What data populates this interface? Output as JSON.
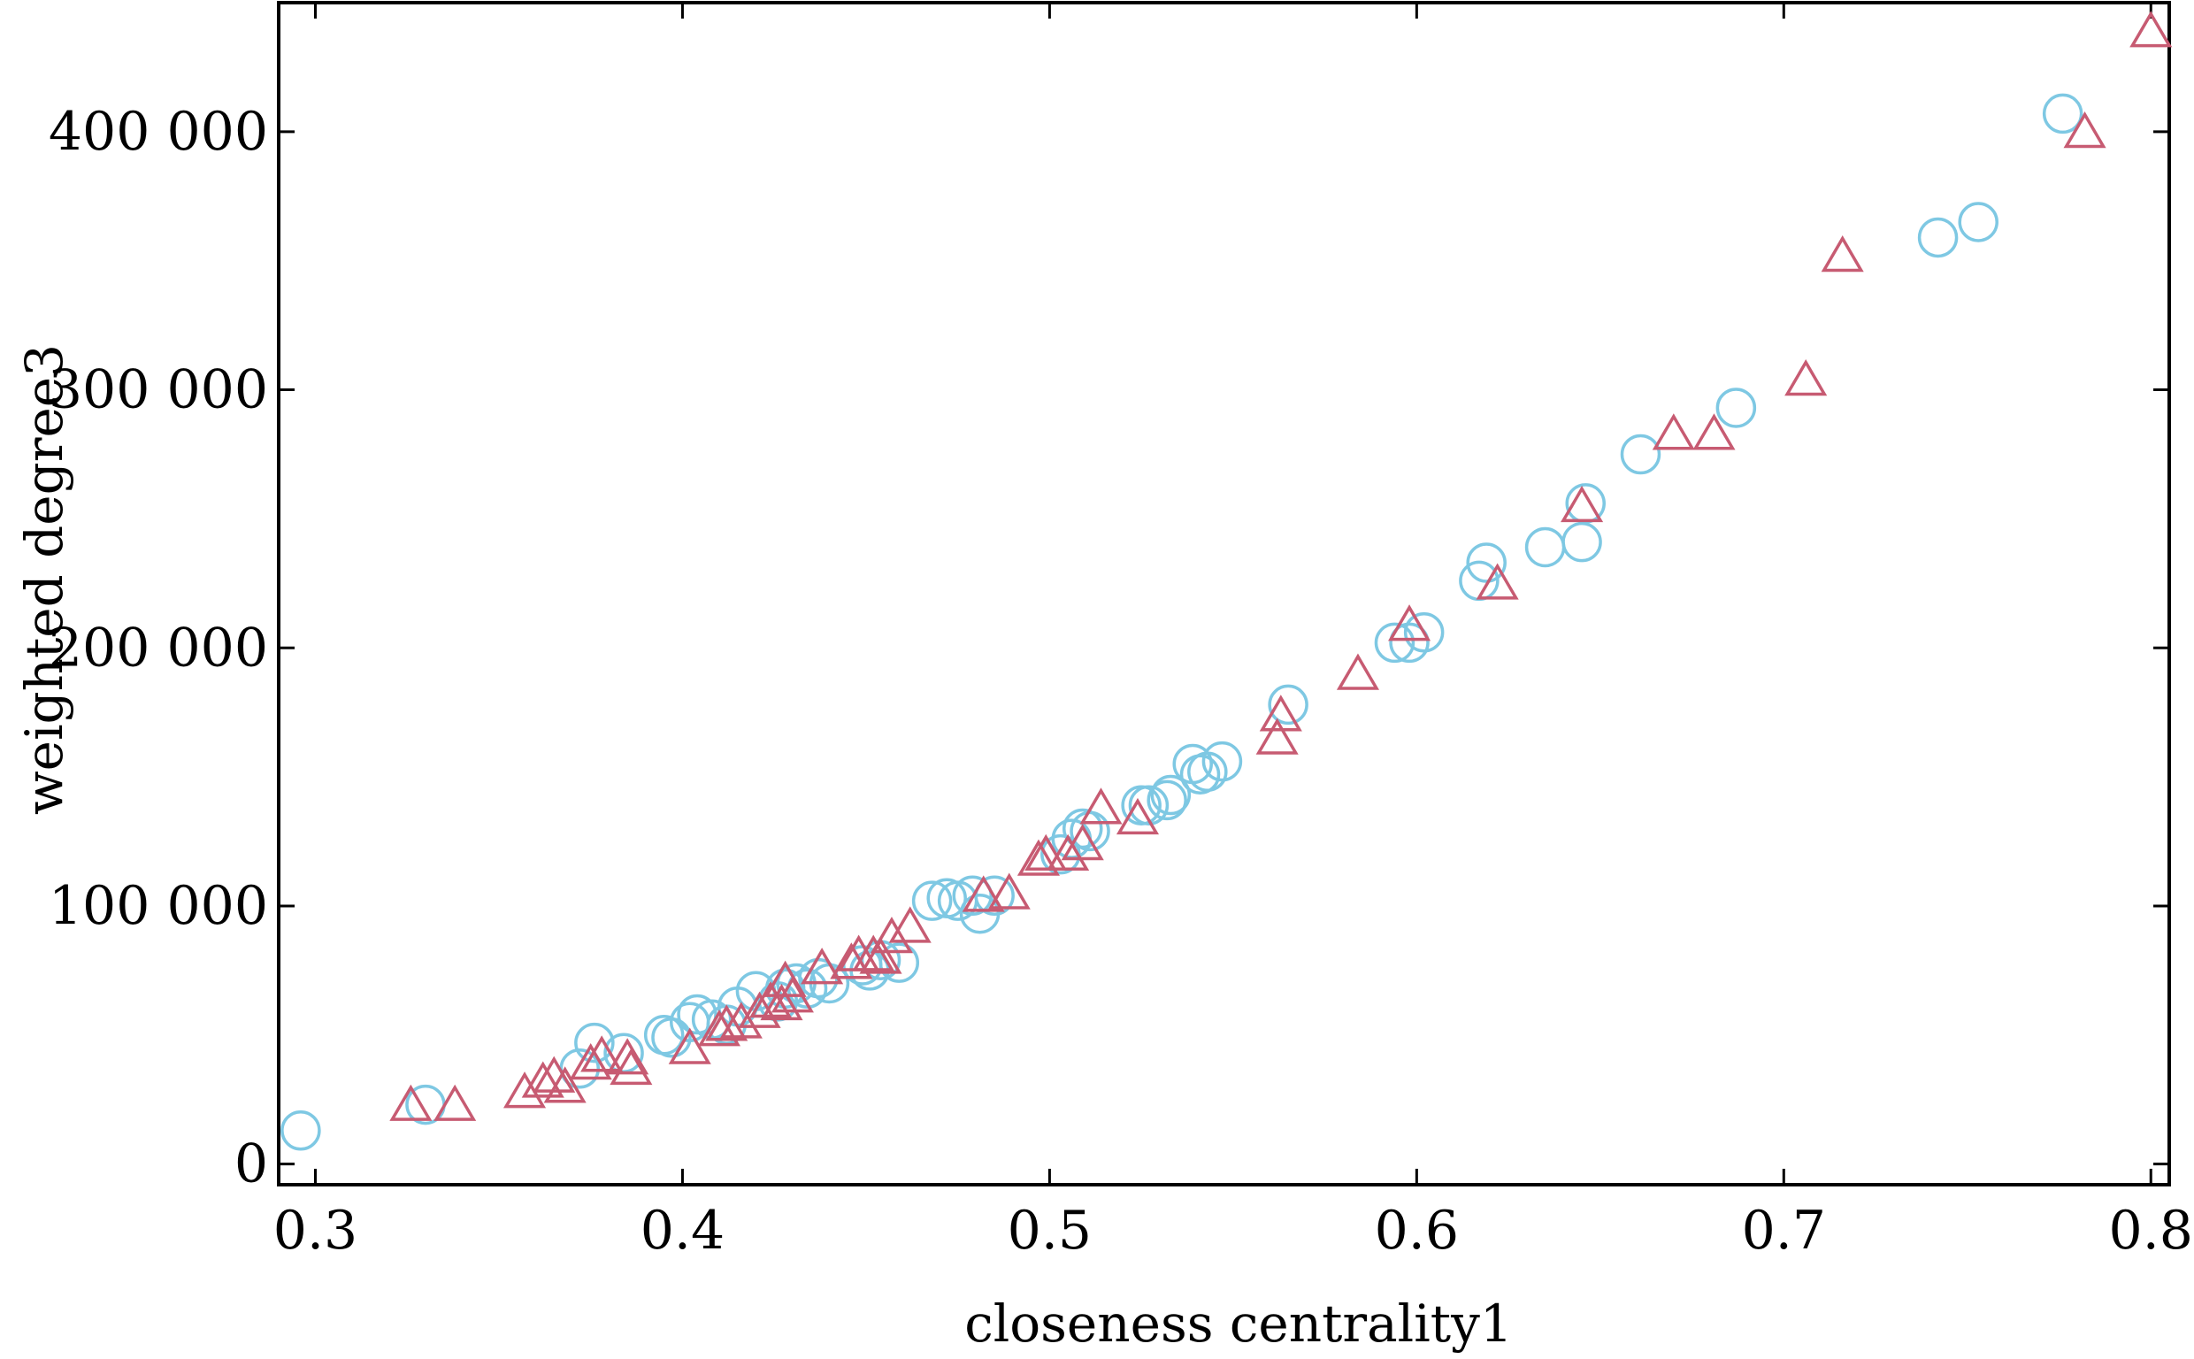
{
  "chart_data": {
    "type": "scatter",
    "xlabel": "closeness centrality1",
    "ylabel": "weighted degree3",
    "xlim": [
      0.29,
      0.805
    ],
    "ylim": [
      -8000,
      450000
    ],
    "xticks": [
      0.3,
      0.4,
      0.5,
      0.6,
      0.7,
      0.8
    ],
    "xtick_labels": [
      "0.3",
      "0.4",
      "0.5",
      "0.6",
      "0.7",
      "0.8"
    ],
    "yticks": [
      0,
      100000,
      200000,
      300000,
      400000
    ],
    "ytick_labels": [
      "0",
      "100 000",
      "200 000",
      "300 000",
      "400 000"
    ],
    "grid": false,
    "series": [
      {
        "marker": "circle",
        "color": "#7ec8e3",
        "points": [
          [
            0.296,
            13000
          ],
          [
            0.33,
            23000
          ],
          [
            0.372,
            37000
          ],
          [
            0.376,
            47000
          ],
          [
            0.384,
            43000
          ],
          [
            0.395,
            50000
          ],
          [
            0.397,
            49000
          ],
          [
            0.402,
            55000
          ],
          [
            0.404,
            58000
          ],
          [
            0.408,
            56000
          ],
          [
            0.412,
            54000
          ],
          [
            0.415,
            61000
          ],
          [
            0.42,
            67000
          ],
          [
            0.426,
            63000
          ],
          [
            0.428,
            68000
          ],
          [
            0.431,
            70000
          ],
          [
            0.434,
            68000
          ],
          [
            0.437,
            72000
          ],
          [
            0.44,
            70000
          ],
          [
            0.449,
            77000
          ],
          [
            0.451,
            75000
          ],
          [
            0.454,
            79000
          ],
          [
            0.459,
            78000
          ],
          [
            0.468,
            102000
          ],
          [
            0.472,
            103000
          ],
          [
            0.475,
            102000
          ],
          [
            0.479,
            104000
          ],
          [
            0.481,
            97000
          ],
          [
            0.485,
            104000
          ],
          [
            0.503,
            120000
          ],
          [
            0.506,
            126000
          ],
          [
            0.509,
            130000
          ],
          [
            0.511,
            129000
          ],
          [
            0.525,
            139000
          ],
          [
            0.527,
            139000
          ],
          [
            0.532,
            141000
          ],
          [
            0.533,
            143000
          ],
          [
            0.539,
            155000
          ],
          [
            0.541,
            151000
          ],
          [
            0.543,
            152000
          ],
          [
            0.547,
            156000
          ],
          [
            0.565,
            178000
          ],
          [
            0.594,
            202000
          ],
          [
            0.598,
            202000
          ],
          [
            0.602,
            206000
          ],
          [
            0.617,
            226000
          ],
          [
            0.619,
            233000
          ],
          [
            0.635,
            239000
          ],
          [
            0.645,
            241000
          ],
          [
            0.646,
            256000
          ],
          [
            0.661,
            275000
          ],
          [
            0.687,
            293000
          ],
          [
            0.742,
            359000
          ],
          [
            0.753,
            365000
          ],
          [
            0.776,
            407000
          ]
        ]
      },
      {
        "marker": "triangle",
        "color": "#c75b72",
        "points": [
          [
            0.326,
            22000
          ],
          [
            0.338,
            22000
          ],
          [
            0.357,
            27000
          ],
          [
            0.362,
            31000
          ],
          [
            0.365,
            33000
          ],
          [
            0.368,
            29000
          ],
          [
            0.375,
            38000
          ],
          [
            0.378,
            41000
          ],
          [
            0.385,
            40000
          ],
          [
            0.386,
            36000
          ],
          [
            0.402,
            44000
          ],
          [
            0.41,
            51000
          ],
          [
            0.412,
            53000
          ],
          [
            0.416,
            54000
          ],
          [
            0.421,
            58000
          ],
          [
            0.424,
            62000
          ],
          [
            0.427,
            61000
          ],
          [
            0.428,
            70000
          ],
          [
            0.43,
            64000
          ],
          [
            0.438,
            75000
          ],
          [
            0.446,
            77000
          ],
          [
            0.448,
            80000
          ],
          [
            0.452,
            80000
          ],
          [
            0.454,
            79000
          ],
          [
            0.457,
            87000
          ],
          [
            0.462,
            91000
          ],
          [
            0.482,
            103000
          ],
          [
            0.489,
            104000
          ],
          [
            0.497,
            117000
          ],
          [
            0.499,
            119000
          ],
          [
            0.505,
            119000
          ],
          [
            0.509,
            123000
          ],
          [
            0.514,
            137000
          ],
          [
            0.524,
            133000
          ],
          [
            0.562,
            164000
          ],
          [
            0.563,
            173000
          ],
          [
            0.584,
            189000
          ],
          [
            0.598,
            208000
          ],
          [
            0.622,
            224000
          ],
          [
            0.645,
            254000
          ],
          [
            0.67,
            282000
          ],
          [
            0.681,
            282000
          ],
          [
            0.706,
            303000
          ],
          [
            0.716,
            351000
          ],
          [
            0.782,
            399000
          ],
          [
            0.8,
            438000
          ]
        ]
      }
    ]
  }
}
